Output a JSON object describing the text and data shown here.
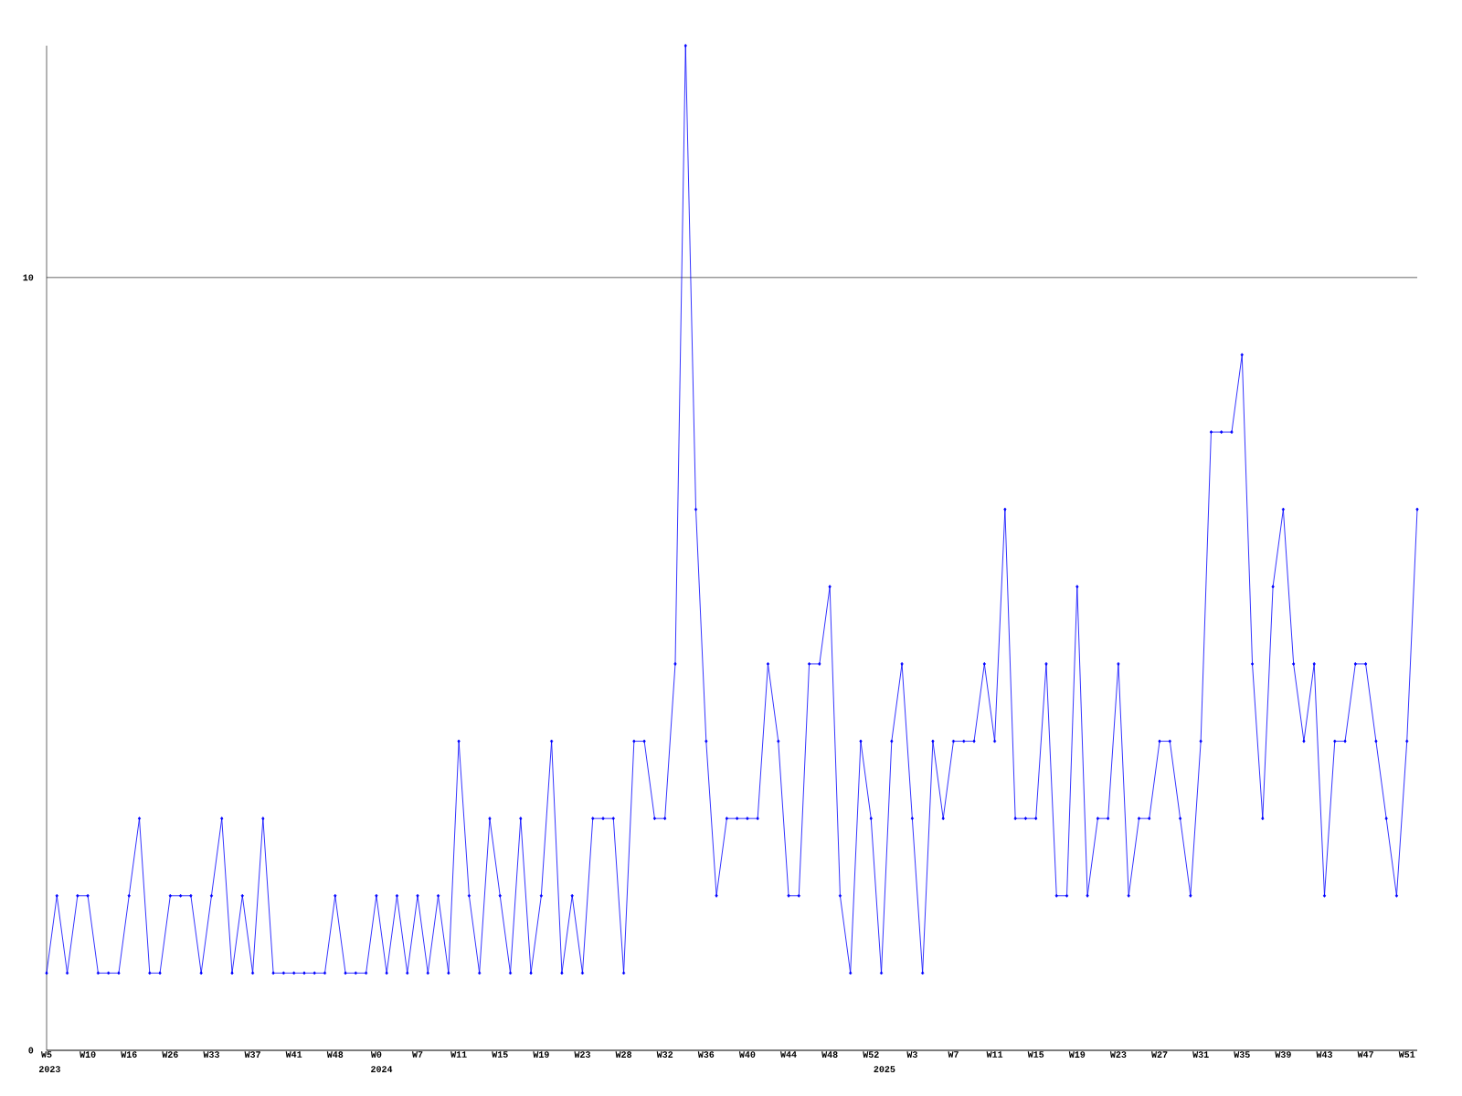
{
  "chart_data": {
    "type": "line",
    "categories": [
      "W5",
      null,
      null,
      null,
      "W10",
      null,
      null,
      null,
      "W16",
      null,
      null,
      null,
      "W26",
      null,
      null,
      null,
      "W33",
      null,
      null,
      null,
      "W37",
      null,
      null,
      null,
      "W41",
      null,
      null,
      null,
      "W48",
      null,
      null,
      null,
      "W0",
      null,
      null,
      null,
      "W7",
      null,
      null,
      null,
      "W11",
      null,
      null,
      null,
      "W15",
      null,
      null,
      null,
      "W19",
      null,
      null,
      null,
      "W23",
      null,
      null,
      null,
      "W28",
      null,
      null,
      null,
      "W32",
      null,
      null,
      null,
      "W36",
      null,
      null,
      null,
      "W40",
      null,
      null,
      null,
      "W44",
      null,
      null,
      null,
      "W48",
      null,
      null,
      null,
      "W52",
      null,
      null,
      null,
      "W3",
      null,
      null,
      null,
      "W7",
      null,
      null,
      null,
      "W11",
      null,
      null,
      null,
      "W15",
      null,
      null,
      null,
      "W19",
      null,
      null,
      null,
      "W23",
      null,
      null,
      null,
      "W27",
      null,
      null,
      null,
      "W31",
      null,
      null,
      null,
      "W35",
      null,
      null,
      null,
      "W39",
      null,
      null,
      null,
      "W43",
      null,
      null,
      null,
      "W47",
      null,
      null,
      null,
      "W51",
      null
    ],
    "series": [
      {
        "color": "#0000ff",
        "values": [
          1,
          2,
          1,
          2,
          2,
          1,
          1,
          1,
          2,
          3,
          1,
          1,
          2,
          2,
          2,
          1,
          2,
          3,
          1,
          2,
          1,
          3,
          1,
          1,
          1,
          1,
          1,
          1,
          2,
          1,
          1,
          1,
          2,
          1,
          2,
          1,
          2,
          1,
          2,
          1,
          4,
          2,
          1,
          3,
          2,
          1,
          3,
          1,
          2,
          4,
          1,
          2,
          1,
          3,
          3,
          3,
          1,
          4,
          4,
          3,
          3,
          5,
          13,
          7,
          4,
          2,
          3,
          3,
          3,
          3,
          5,
          4,
          2,
          2,
          5,
          5,
          6,
          2,
          1,
          4,
          3,
          1,
          4,
          5,
          3,
          1,
          4,
          3,
          4,
          4,
          4,
          5,
          4,
          7,
          3,
          3,
          3,
          5,
          2,
          2,
          6,
          2,
          3,
          3,
          5,
          2,
          3,
          3,
          4,
          4,
          3,
          2,
          4,
          8,
          8,
          8,
          9,
          5,
          3,
          6,
          7,
          5,
          4,
          5,
          2,
          4,
          4,
          5,
          5,
          4,
          3,
          2,
          4,
          7
        ]
      }
    ],
    "ylim": [
      0,
      13
    ],
    "yticks": [
      0,
      10
    ],
    "grid": "y",
    "marker": "diamond",
    "line_style": "solid",
    "annotations": [
      "2023",
      "2024",
      "2025"
    ]
  }
}
